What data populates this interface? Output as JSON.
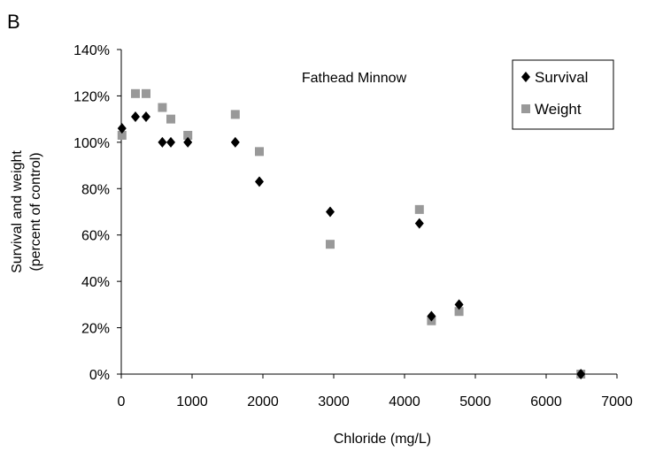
{
  "panel_label": "B",
  "chart_data": {
    "type": "scatter",
    "annotation": "Fathead Minnow",
    "xlabel": "Chloride (mg/L)",
    "ylabel_lines": [
      "Survival and weight",
      "(percent of control)"
    ],
    "xlim": [
      0,
      7000
    ],
    "ylim": [
      0,
      140
    ],
    "x_ticks": [
      0,
      1000,
      2000,
      3000,
      4000,
      5000,
      6000,
      7000
    ],
    "x_tick_labels": [
      "0",
      "1000",
      "2000",
      "3000",
      "4000",
      "5000",
      "6000",
      "7000"
    ],
    "y_ticks": [
      0,
      20,
      40,
      60,
      80,
      100,
      120,
      140
    ],
    "y_tick_labels": [
      "0%",
      "20%",
      "40%",
      "60%",
      "80%",
      "100%",
      "120%",
      "140%"
    ],
    "grid": false,
    "legend_position": "top-right",
    "series": [
      {
        "name": "Survival",
        "marker": "diamond",
        "color": "#000000",
        "points": [
          {
            "x": 10,
            "y": 106
          },
          {
            "x": 200,
            "y": 111
          },
          {
            "x": 350,
            "y": 111
          },
          {
            "x": 580,
            "y": 100
          },
          {
            "x": 700,
            "y": 100
          },
          {
            "x": 940,
            "y": 100
          },
          {
            "x": 1610,
            "y": 100
          },
          {
            "x": 1950,
            "y": 83
          },
          {
            "x": 2950,
            "y": 70
          },
          {
            "x": 4210,
            "y": 65
          },
          {
            "x": 4380,
            "y": 25
          },
          {
            "x": 4770,
            "y": 30
          },
          {
            "x": 6490,
            "y": 0
          }
        ]
      },
      {
        "name": "Weight",
        "marker": "square",
        "color": "#999999",
        "points": [
          {
            "x": 10,
            "y": 103
          },
          {
            "x": 200,
            "y": 121
          },
          {
            "x": 350,
            "y": 121
          },
          {
            "x": 580,
            "y": 115
          },
          {
            "x": 700,
            "y": 110
          },
          {
            "x": 940,
            "y": 103
          },
          {
            "x": 1610,
            "y": 112
          },
          {
            "x": 1950,
            "y": 96
          },
          {
            "x": 2950,
            "y": 56
          },
          {
            "x": 4210,
            "y": 71
          },
          {
            "x": 4380,
            "y": 23
          },
          {
            "x": 4770,
            "y": 27
          },
          {
            "x": 6490,
            "y": 0
          }
        ]
      }
    ]
  }
}
